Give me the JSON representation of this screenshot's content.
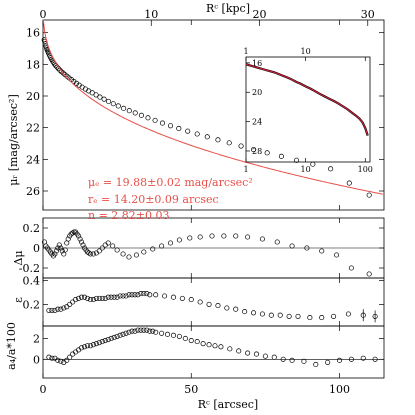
{
  "chart_data": [
    {
      "type": "scatter",
      "panel": "surface-brightness",
      "xlabel": "Rᶜ [arcsec]",
      "x2label": "Rᶜ [kpc]",
      "ylabel": "μᵣ [mag/arcsec²]",
      "xlim": [
        0,
        115
      ],
      "x2lim": [
        0,
        31.5
      ],
      "ylim": [
        27.2,
        15.2
      ],
      "y_inverted": true,
      "xticks": [
        0,
        50,
        100
      ],
      "x2ticks": [
        0,
        10,
        20,
        30
      ],
      "yticks": [
        16,
        18,
        20,
        22,
        24,
        26
      ],
      "annotations": [
        "μₑ = 19.88±0.02 mag/arcsec²",
        "rₑ = 14.20±0.09 arcsec",
        "n = 2.82±0.03"
      ],
      "model": {
        "type": "sersic",
        "mu_e": 19.88,
        "r_e": 14.2,
        "n": 2.82
      },
      "x": [
        0.4,
        0.6,
        0.8,
        1.0,
        1.2,
        1.4,
        1.6,
        1.8,
        2.0,
        2.3,
        2.6,
        2.9,
        3.2,
        3.5,
        3.9,
        4.3,
        4.7,
        5.2,
        5.7,
        6.2,
        6.8,
        7.4,
        8.1,
        8.8,
        9.6,
        10.4,
        11.3,
        12.2,
        13.2,
        14.3,
        15.4,
        16.6,
        17.9,
        19.2,
        20.6,
        22.1,
        23.7,
        25.4,
        27.2,
        29.1,
        31.1,
        33.2,
        35.4,
        37.8,
        40.3,
        43.0,
        45.8,
        48.8,
        52.0,
        55.4,
        59.0,
        62.8,
        66.8,
        71.0,
        75.6,
        80.4,
        85.5,
        91.0,
        97.0,
        103.3,
        110.0
      ],
      "y": [
        16.45,
        16.55,
        16.7,
        16.85,
        16.97,
        17.07,
        17.16,
        17.25,
        17.34,
        17.46,
        17.58,
        17.68,
        17.78,
        17.87,
        17.98,
        18.08,
        18.17,
        18.27,
        18.37,
        18.46,
        18.55,
        18.65,
        18.75,
        18.86,
        18.97,
        19.08,
        19.2,
        19.32,
        19.44,
        19.56,
        19.68,
        19.8,
        19.93,
        20.07,
        20.2,
        20.34,
        20.49,
        20.63,
        20.78,
        20.93,
        21.07,
        21.22,
        21.38,
        21.54,
        21.71,
        21.88,
        22.05,
        22.22,
        22.4,
        22.58,
        22.77,
        22.96,
        23.16,
        23.38,
        23.59,
        23.81,
        24.06,
        24.31,
        24.6,
        25.5,
        26.26
      ]
    },
    {
      "type": "scatter",
      "panel": "residual",
      "ylabel": "Δμ",
      "xlim": [
        0,
        115
      ],
      "ylim": [
        -0.3,
        0.3
      ],
      "yticks": [
        -0.2,
        0,
        0.2
      ],
      "x": [
        0.5,
        1.0,
        1.5,
        2.0,
        2.5,
        3.0,
        3.5,
        4.0,
        4.5,
        5.0,
        5.5,
        6.0,
        6.5,
        7.0,
        7.5,
        8.0,
        8.5,
        9.0,
        9.5,
        10.0,
        10.5,
        11.0,
        11.5,
        12.0,
        12.5,
        13.0,
        13.5,
        14.0,
        14.5,
        15.0,
        15.5,
        16.0,
        17.0,
        18.0,
        19.0,
        20.0,
        21.0,
        22.0,
        23.5,
        25.0,
        27.0,
        29.0,
        31.5,
        34.0,
        37.0,
        40.0,
        43.0,
        46.0,
        49.5,
        53.0,
        57.0,
        61.0,
        65.0,
        69.0,
        74.0,
        79.0,
        84.0,
        89.0,
        94.0,
        99.0,
        104.0,
        110.0
      ],
      "y": [
        0.06,
        0.02,
        0.0,
        -0.02,
        -0.04,
        -0.06,
        -0.08,
        -0.06,
        -0.03,
        0.0,
        0.03,
        0.0,
        -0.03,
        -0.06,
        -0.02,
        0.05,
        0.09,
        0.12,
        0.14,
        0.15,
        0.16,
        0.16,
        0.14,
        0.12,
        0.09,
        0.06,
        0.03,
        0.0,
        -0.02,
        -0.04,
        -0.05,
        -0.06,
        -0.06,
        -0.05,
        -0.03,
        0.0,
        0.03,
        0.05,
        0.02,
        -0.02,
        -0.06,
        -0.09,
        -0.07,
        -0.04,
        -0.01,
        0.02,
        0.05,
        0.08,
        0.1,
        0.11,
        0.12,
        0.12,
        0.12,
        0.11,
        0.09,
        0.06,
        0.02,
        0.0,
        -0.03,
        -0.07,
        -0.2,
        -0.26
      ]
    },
    {
      "type": "scatter",
      "panel": "ellipticity",
      "ylabel": "ε",
      "xlim": [
        0,
        115
      ],
      "ylim": [
        0.02,
        0.42
      ],
      "yticks": [
        0.2,
        0.4
      ],
      "x": [
        2.0,
        3.0,
        4.0,
        5.0,
        6.0,
        7.0,
        8.0,
        9.0,
        10.0,
        11.0,
        12.0,
        13.0,
        14.0,
        15.0,
        16.0,
        17.0,
        18.0,
        19.0,
        20.0,
        21.0,
        22.0,
        23.0,
        24.0,
        25.0,
        26.0,
        27.0,
        28.0,
        29.0,
        30.0,
        31.0,
        32.0,
        33.0,
        34.0,
        35.0,
        36.0,
        38.0,
        41.0,
        44.0,
        47.0,
        50.0,
        53.0,
        56.0,
        59.0,
        62.0,
        65.0,
        68.0,
        71.0,
        74.0,
        77.0,
        80.0,
        83.0,
        86.0,
        90.0,
        94.0,
        98.0,
        103.0,
        108.0,
        112.0
      ],
      "y": [
        0.15,
        0.15,
        0.15,
        0.16,
        0.16,
        0.17,
        0.18,
        0.2,
        0.22,
        0.24,
        0.25,
        0.26,
        0.26,
        0.25,
        0.24,
        0.24,
        0.25,
        0.25,
        0.25,
        0.25,
        0.26,
        0.26,
        0.26,
        0.26,
        0.27,
        0.27,
        0.27,
        0.28,
        0.28,
        0.28,
        0.28,
        0.29,
        0.29,
        0.29,
        0.28,
        0.28,
        0.27,
        0.26,
        0.25,
        0.24,
        0.22,
        0.2,
        0.19,
        0.17,
        0.16,
        0.14,
        0.13,
        0.12,
        0.11,
        0.11,
        0.1,
        0.1,
        0.09,
        0.09,
        0.1,
        0.12,
        0.11,
        0.1
      ]
    },
    {
      "type": "scatter",
      "panel": "a4",
      "ylabel": "a₄/a*100",
      "xlim": [
        0,
        115
      ],
      "ylim": [
        -1.8,
        3.2
      ],
      "yticks": [
        0,
        2
      ],
      "x": [
        2.0,
        3.0,
        4.0,
        5.0,
        6.0,
        7.0,
        8.0,
        9.0,
        10.0,
        11.0,
        12.0,
        13.0,
        14.0,
        15.0,
        16.0,
        17.0,
        18.0,
        19.0,
        20.0,
        21.0,
        22.0,
        23.0,
        24.0,
        25.0,
        26.0,
        27.0,
        28.0,
        29.0,
        30.0,
        31.0,
        32.0,
        33.0,
        34.0,
        35.0,
        36.0,
        37.0,
        38.0,
        40.0,
        42.0,
        44.0,
        46.0,
        48.0,
        50.0,
        52.0,
        54.0,
        56.0,
        58.0,
        60.0,
        63.0,
        66.0,
        69.0,
        72.0,
        75.0,
        78.0,
        81.0,
        84.0,
        88.0,
        92.0,
        96.0,
        100.0,
        104.0,
        108.0,
        112.0
      ],
      "y": [
        0.2,
        0.1,
        0.1,
        -0.1,
        -0.2,
        -0.3,
        -0.1,
        0.2,
        0.5,
        0.7,
        0.9,
        1.1,
        1.2,
        1.3,
        1.3,
        1.4,
        1.5,
        1.6,
        1.7,
        1.8,
        1.9,
        2.0,
        2.1,
        2.2,
        2.3,
        2.4,
        2.5,
        2.6,
        2.7,
        2.7,
        2.8,
        2.8,
        2.8,
        2.8,
        2.7,
        2.7,
        2.6,
        2.5,
        2.4,
        2.3,
        2.2,
        2.0,
        1.8,
        1.7,
        1.5,
        1.4,
        1.3,
        1.2,
        1.0,
        0.8,
        0.6,
        0.5,
        0.3,
        0.2,
        0.0,
        -0.1,
        -0.2,
        -0.5,
        -0.3,
        -0.1,
        0.0,
        0.1,
        0.0
      ]
    },
    {
      "type": "line",
      "panel": "inset",
      "xscale": "log",
      "xlim": [
        1,
        120
      ],
      "ylim": [
        29.5,
        15.2
      ],
      "y_inverted": true,
      "xticks": [
        1,
        10,
        100
      ],
      "yticks": [
        16,
        20,
        24,
        28
      ],
      "x": [
        1,
        1.5,
        2,
        3,
        4,
        5,
        6,
        7,
        8,
        10,
        12,
        14,
        17,
        20,
        25,
        30,
        35,
        40,
        50,
        60,
        70,
        80,
        90,
        100,
        110
      ],
      "y": [
        16.2,
        16.6,
        16.9,
        17.3,
        17.7,
        18.0,
        18.3,
        18.6,
        18.8,
        19.2,
        19.5,
        19.8,
        20.2,
        20.5,
        20.9,
        21.2,
        21.5,
        21.8,
        22.3,
        22.8,
        23.2,
        23.6,
        24.1,
        24.9,
        25.9
      ]
    }
  ]
}
